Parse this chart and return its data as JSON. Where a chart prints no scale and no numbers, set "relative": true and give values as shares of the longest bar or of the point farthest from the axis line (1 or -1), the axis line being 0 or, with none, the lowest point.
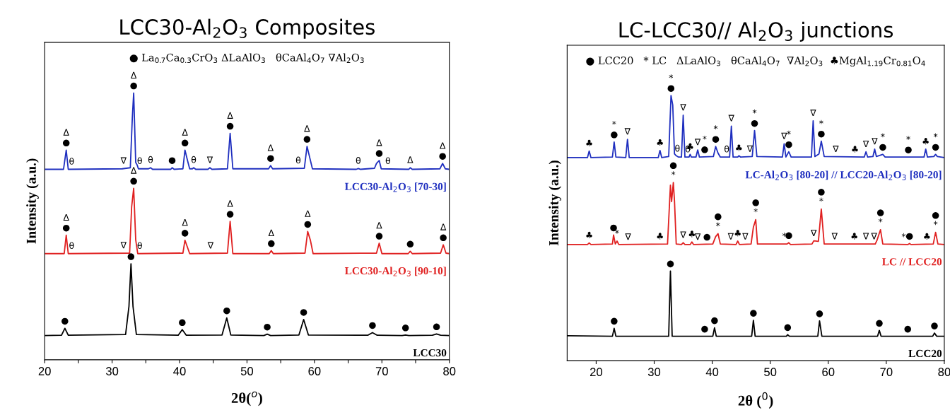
{
  "chart_data": [
    {
      "type": "line",
      "title": "LCC30-Al$_{2}$O$_{3}$ Composites",
      "xlabel": "2θ($^{o}$)",
      "ylabel": "Intensity (a.u.)",
      "relative": true,
      "tick_labels": "x",
      "xlim": [
        20,
        80
      ],
      "xticks": [
        20,
        {
          "value": 25,
          "label": null
        },
        30,
        {
          "value": 35,
          "label": null
        },
        40,
        {
          "value": 45,
          "label": null
        },
        50,
        {
          "value": 55,
          "label": null
        },
        60,
        {
          "value": 65,
          "label": null
        },
        70,
        {
          "value": 75,
          "label": null
        },
        80
      ],
      "series": [
        {
          "name": "LCC30-Al$_{2}$O$_{3}$ [70-30]",
          "color": "#1f2fbf",
          "x": [
            20,
            22.8,
            23.2,
            23.5,
            31.5,
            32.7,
            33.0,
            33.2,
            33.5,
            33.7,
            33.9,
            35.4,
            35.7,
            36.0,
            38.7,
            38.9,
            39.2,
            40.5,
            40.8,
            41.2,
            41.5,
            41.9,
            42.1,
            42.4,
            44.2,
            44.5,
            44.8,
            47.1,
            47.5,
            47.9,
            53.2,
            53.5,
            53.8,
            58.5,
            58.9,
            59.3,
            59.7,
            66.2,
            66.5,
            66.8,
            68.9,
            69.2,
            69.6,
            69.9,
            74.0,
            74.2,
            74.5,
            78.6,
            79.0,
            79.4,
            80
          ],
          "values": [
            0.714,
            0.714,
            0.786,
            0.714,
            0.716,
            0.72,
            0.909,
            1.0,
            0.74,
            0.731,
            0.716,
            0.716,
            0.72,
            0.714,
            0.714,
            0.72,
            0.714,
            0.716,
            0.786,
            0.745,
            0.716,
            0.716,
            0.72,
            0.714,
            0.714,
            0.72,
            0.714,
            0.716,
            0.849,
            0.716,
            0.716,
            0.728,
            0.716,
            0.718,
            0.8,
            0.758,
            0.716,
            0.714,
            0.717,
            0.714,
            0.718,
            0.736,
            0.747,
            0.716,
            0.714,
            0.72,
            0.714,
            0.716,
            0.736,
            0.716,
            0.714
          ]
        },
        {
          "name": "LCC30-Al$_{2}$O$_{3}$ [90-10]",
          "color": "#e02020",
          "x": [
            20,
            22.9,
            23.2,
            23.5,
            32.6,
            32.9,
            33.2,
            33.5,
            33.8,
            40.5,
            40.8,
            41.2,
            41.5,
            47.1,
            47.5,
            47.9,
            53.3,
            53.6,
            53.9,
            58.6,
            59.0,
            59.4,
            59.8,
            69.2,
            69.6,
            70.0,
            73.9,
            74.2,
            74.5,
            78.7,
            79.1,
            79.5,
            80
          ],
          "values": [
            0.398,
            0.398,
            0.467,
            0.398,
            0.4,
            0.574,
            0.643,
            0.45,
            0.398,
            0.4,
            0.448,
            0.42,
            0.398,
            0.4,
            0.519,
            0.398,
            0.398,
            0.409,
            0.398,
            0.4,
            0.481,
            0.448,
            0.398,
            0.4,
            0.437,
            0.398,
            0.398,
            0.407,
            0.398,
            0.4,
            0.431,
            0.4,
            0.398
          ]
        },
        {
          "name": "LCC30",
          "color": "#000000",
          "x": [
            20,
            22.5,
            23.0,
            23.5,
            32.0,
            32.5,
            32.8,
            33.1,
            33.6,
            39.8,
            40.4,
            41.0,
            46.3,
            47.0,
            47.6,
            52.5,
            53.0,
            53.5,
            57.7,
            58.4,
            59.1,
            67.9,
            68.6,
            69.3,
            73.0,
            73.5,
            74.0,
            77.5,
            78.1,
            78.7,
            80
          ],
          "values": [
            0.091,
            0.092,
            0.118,
            0.092,
            0.095,
            0.2,
            0.36,
            0.2,
            0.095,
            0.092,
            0.113,
            0.092,
            0.093,
            0.157,
            0.093,
            0.091,
            0.096,
            0.091,
            0.093,
            0.151,
            0.093,
            0.092,
            0.102,
            0.092,
            0.091,
            0.093,
            0.091,
            0.092,
            0.097,
            0.092,
            0.091
          ]
        }
      ],
      "annotations": [
        "● La$_{0.7}$Ca$_{0.3}$CrO$_{3}$ ΔLaAlO$_{3}$   θCaAl$_{4}$O$_{7}$ ∇Al$_{2}$O$_{3}$",
        {
          "text": "●",
          "x": 23.2,
          "y": 0.786
        },
        {
          "text": "Δ",
          "x": 23.2,
          "y": 0.786
        },
        {
          "text": "θ",
          "x": 24.0,
          "y": 0.714
        },
        {
          "text": "∇",
          "x": 31.7,
          "y": 0.717
        },
        {
          "text": "●",
          "x": 33.2,
          "y": 1.0
        },
        {
          "text": "Δ",
          "x": 33.2,
          "y": 1.0
        },
        {
          "text": "θ",
          "x": 34.1,
          "y": 0.716
        },
        {
          "text": "θ",
          "x": 35.7,
          "y": 0.72
        },
        {
          "text": "●",
          "x": 38.9,
          "y": 0.72
        },
        {
          "text": "●",
          "x": 40.8,
          "y": 0.786
        },
        {
          "text": "Δ",
          "x": 40.8,
          "y": 0.786
        },
        {
          "text": "θ",
          "x": 42.1,
          "y": 0.72
        },
        {
          "text": "∇",
          "x": 44.5,
          "y": 0.72
        },
        {
          "text": "●",
          "x": 47.5,
          "y": 0.849
        },
        {
          "text": "Δ",
          "x": 47.5,
          "y": 0.849
        },
        {
          "text": "●",
          "x": 53.5,
          "y": 0.728
        },
        {
          "text": "Δ",
          "x": 53.5,
          "y": 0.728
        },
        {
          "text": "θ",
          "x": 57.6,
          "y": 0.718
        },
        {
          "text": "●",
          "x": 58.9,
          "y": 0.8
        },
        {
          "text": "Δ",
          "x": 58.9,
          "y": 0.8
        },
        {
          "text": "θ",
          "x": 66.5,
          "y": 0.717
        },
        {
          "text": "●",
          "x": 69.6,
          "y": 0.747
        },
        {
          "text": "Δ",
          "x": 69.6,
          "y": 0.747
        },
        {
          "text": "θ",
          "x": 70.9,
          "y": 0.716
        },
        {
          "text": "Δ",
          "x": 74.2,
          "y": 0.72
        },
        {
          "text": "●",
          "x": 79.0,
          "y": 0.736
        },
        {
          "text": "Δ",
          "x": 79.0,
          "y": 0.736
        },
        {
          "text": "●",
          "x": 23.2,
          "y": 0.467
        },
        {
          "text": "Δ",
          "x": 23.2,
          "y": 0.467
        },
        {
          "text": "θ",
          "x": 24.0,
          "y": 0.398
        },
        {
          "text": "∇",
          "x": 31.7,
          "y": 0.4
        },
        {
          "text": "●",
          "x": 33.2,
          "y": 0.643
        },
        {
          "text": "Δ",
          "x": 33.2,
          "y": 0.643
        },
        {
          "text": "θ",
          "x": 34.1,
          "y": 0.398
        },
        {
          "text": "●",
          "x": 40.8,
          "y": 0.448
        },
        {
          "text": "Δ",
          "x": 40.8,
          "y": 0.448
        },
        {
          "text": "∇",
          "x": 44.6,
          "y": 0.399
        },
        {
          "text": "●",
          "x": 47.5,
          "y": 0.519
        },
        {
          "text": "Δ",
          "x": 47.5,
          "y": 0.519
        },
        {
          "text": "●",
          "x": 53.6,
          "y": 0.409
        },
        {
          "text": "Δ",
          "x": 53.6,
          "y": 0.409
        },
        {
          "text": "●",
          "x": 59.0,
          "y": 0.481
        },
        {
          "text": "Δ",
          "x": 59.0,
          "y": 0.481
        },
        {
          "text": "●",
          "x": 69.6,
          "y": 0.437
        },
        {
          "text": "Δ",
          "x": 69.6,
          "y": 0.437
        },
        {
          "text": "●",
          "x": 74.2,
          "y": 0.407
        },
        {
          "text": "●",
          "x": 79.1,
          "y": 0.431
        },
        {
          "text": "Δ",
          "x": 79.1,
          "y": 0.431
        },
        {
          "text": "●",
          "x": 23.0,
          "y": 0.118
        },
        {
          "text": "●",
          "x": 32.8,
          "y": 0.36
        },
        {
          "text": "●",
          "x": 40.4,
          "y": 0.113
        },
        {
          "text": "●",
          "x": 47.0,
          "y": 0.157
        },
        {
          "text": "●",
          "x": 53.0,
          "y": 0.096
        },
        {
          "text": "●",
          "x": 58.4,
          "y": 0.151
        },
        {
          "text": "●",
          "x": 68.6,
          "y": 0.102
        },
        {
          "text": "●",
          "x": 73.5,
          "y": 0.093
        },
        {
          "text": "●",
          "x": 78.1,
          "y": 0.097
        }
      ]
    },
    {
      "type": "line",
      "title": "LC-LCC30// Al$_{2}$O$_{3}$ junctions",
      "xlabel": "2θ ($^{0}$)",
      "ylabel": "Intensity (a.u.)",
      "relative": true,
      "tick_labels": "x",
      "xlim": [
        15,
        80
      ],
      "xticks": [
        20,
        30,
        40,
        50,
        60,
        70,
        80
      ],
      "series": [
        {
          "name": "LC-Al$_{2}$O$_{3}$ [80-20] // LCC20-Al$_{2}$O$_{3}$ [80-20]",
          "color": "#1f2fbf",
          "x": [
            15,
            18.5,
            18.8,
            19.1,
            22.8,
            23.1,
            23.4,
            25.1,
            25.4,
            25.7,
            30.7,
            31.0,
            31.3,
            32.5,
            32.9,
            33.2,
            33.5,
            33.8,
            34.2,
            34.7,
            35.0,
            35.3,
            36.0,
            36.2,
            36.4,
            37.2,
            37.5,
            37.8,
            40.2,
            40.6,
            41.0,
            41.4,
            43.0,
            43.3,
            43.6,
            44.4,
            44.6,
            44.9,
            46.9,
            47.3,
            47.7,
            52.1,
            52.4,
            52.7,
            53.2,
            53.6,
            57.1,
            57.4,
            57.7,
            58.4,
            58.8,
            59.3,
            66.2,
            66.5,
            66.8,
            67.7,
            68.0,
            68.3,
            69.4,
            69.8,
            76.5,
            76.8,
            77.1,
            78.2,
            78.5,
            78.8,
            80
          ],
          "values": [
            0.766,
            0.766,
            0.791,
            0.766,
            0.768,
            0.825,
            0.768,
            0.766,
            0.835,
            0.766,
            0.766,
            0.793,
            0.766,
            0.77,
            1.0,
            0.964,
            0.78,
            0.773,
            0.768,
            0.768,
            0.926,
            0.768,
            0.768,
            0.778,
            0.768,
            0.768,
            0.795,
            0.768,
            0.77,
            0.808,
            0.783,
            0.768,
            0.768,
            0.885,
            0.768,
            0.768,
            0.773,
            0.768,
            0.77,
            0.868,
            0.77,
            0.768,
            0.818,
            0.768,
            0.788,
            0.768,
            0.768,
            0.905,
            0.77,
            0.78,
            0.828,
            0.77,
            0.768,
            0.788,
            0.768,
            0.77,
            0.798,
            0.77,
            0.778,
            0.768,
            0.768,
            0.798,
            0.768,
            0.77,
            0.778,
            0.77,
            0.766
          ]
        },
        {
          "name": "LC // LCC20",
          "color": "#e02020",
          "x": [
            15,
            18.5,
            18.8,
            19.1,
            22.8,
            23.0,
            23.3,
            23.6,
            23.9,
            32.3,
            32.8,
            33.0,
            33.3,
            33.5,
            33.8,
            34.7,
            35.0,
            35.3,
            36.2,
            36.5,
            36.8,
            40.1,
            40.6,
            41.0,
            41.4,
            44.1,
            44.4,
            44.7,
            46.7,
            47.1,
            47.5,
            47.8,
            52.9,
            53.2,
            53.5,
            57.2,
            57.5,
            58.3,
            58.8,
            59.3,
            68.1,
            68.4,
            69.0,
            69.4,
            73.7,
            74.0,
            74.3,
            78.1,
            78.5,
            78.9,
            80
          ],
          "values": [
            0.438,
            0.438,
            0.444,
            0.438,
            0.44,
            0.474,
            0.44,
            0.451,
            0.438,
            0.44,
            0.662,
            0.6,
            0.672,
            0.602,
            0.44,
            0.438,
            0.445,
            0.438,
            0.438,
            0.448,
            0.438,
            0.44,
            0.468,
            0.479,
            0.44,
            0.438,
            0.451,
            0.438,
            0.44,
            0.504,
            0.532,
            0.44,
            0.44,
            0.445,
            0.438,
            0.44,
            0.452,
            0.45,
            0.572,
            0.44,
            0.44,
            0.454,
            0.494,
            0.44,
            0.438,
            0.442,
            0.438,
            0.44,
            0.484,
            0.44,
            0.438
          ]
        },
        {
          "name": "LCC20",
          "color": "#000000",
          "x": [
            15,
            22.8,
            23.1,
            23.4,
            32.5,
            32.8,
            33.1,
            40.1,
            40.4,
            40.7,
            46.8,
            47.1,
            47.4,
            52.8,
            53.0,
            53.3,
            58.2,
            58.5,
            58.9,
            68.5,
            68.8,
            69.1,
            78.0,
            78.3,
            78.7,
            80
          ],
          "values": [
            0.094,
            0.092,
            0.122,
            0.092,
            0.092,
            0.338,
            0.092,
            0.092,
            0.124,
            0.092,
            0.092,
            0.152,
            0.092,
            0.092,
            0.098,
            0.092,
            0.092,
            0.15,
            0.092,
            0.092,
            0.114,
            0.092,
            0.092,
            0.104,
            0.092,
            0.092
          ]
        }
      ],
      "annotations": [
        "● LCC20   * LC   ΔLaAlO$_{3}$   θCaAl$_{4}$O$_{7}$  ∇Al$_{2}$O$_{3}$  ♣MgAl$_{1.19}$Cr$_{0.81}$O$_{4}$",
        {
          "text": "♣",
          "x": 18.8,
          "y": 0.791
        },
        {
          "text": "●",
          "x": 23.1,
          "y": 0.825
        },
        {
          "text": "*",
          "x": 23.1,
          "y": 0.825
        },
        {
          "text": "∇",
          "x": 25.4,
          "y": 0.835
        },
        {
          "text": "♣",
          "x": 31.0,
          "y": 0.793
        },
        {
          "text": "●",
          "x": 32.9,
          "y": 1.0
        },
        {
          "text": "*",
          "x": 32.9,
          "y": 1.0
        },
        {
          "text": "θ",
          "x": 34.0,
          "y": 0.771
        },
        {
          "text": "∇",
          "x": 35.0,
          "y": 0.926
        },
        {
          "text": "θ",
          "x": 35.8,
          "y": 0.768
        },
        {
          "text": "♣",
          "x": 36.2,
          "y": 0.778
        },
        {
          "text": "∇",
          "x": 37.5,
          "y": 0.795
        },
        {
          "text": "●",
          "x": 38.7,
          "y": 0.769
        },
        {
          "text": "*",
          "x": 38.7,
          "y": 0.769
        },
        {
          "text": "●",
          "x": 40.6,
          "y": 0.808
        },
        {
          "text": "*",
          "x": 40.6,
          "y": 0.808
        },
        {
          "text": "θ",
          "x": 42.5,
          "y": 0.768
        },
        {
          "text": "∇",
          "x": 43.3,
          "y": 0.885
        },
        {
          "text": "♣",
          "x": 44.6,
          "y": 0.773
        },
        {
          "text": "∇",
          "x": 46.5,
          "y": 0.77
        },
        {
          "text": "●",
          "x": 47.3,
          "y": 0.868
        },
        {
          "text": "*",
          "x": 47.3,
          "y": 0.868
        },
        {
          "text": "∇",
          "x": 52.4,
          "y": 0.818
        },
        {
          "text": "●",
          "x": 53.2,
          "y": 0.788
        },
        {
          "text": "*",
          "x": 53.2,
          "y": 0.788
        },
        {
          "text": "∇",
          "x": 57.4,
          "y": 0.905
        },
        {
          "text": "●",
          "x": 58.8,
          "y": 0.828
        },
        {
          "text": "*",
          "x": 58.8,
          "y": 0.828
        },
        {
          "text": "∇",
          "x": 61.3,
          "y": 0.769
        },
        {
          "text": "♣",
          "x": 64.6,
          "y": 0.768
        },
        {
          "text": "∇",
          "x": 66.5,
          "y": 0.788
        },
        {
          "text": "∇",
          "x": 68.0,
          "y": 0.798
        },
        {
          "text": "●",
          "x": 69.4,
          "y": 0.778
        },
        {
          "text": "*",
          "x": 69.4,
          "y": 0.778
        },
        {
          "text": "●",
          "x": 73.8,
          "y": 0.768
        },
        {
          "text": "*",
          "x": 73.8,
          "y": 0.768
        },
        {
          "text": "♣",
          "x": 76.8,
          "y": 0.798
        },
        {
          "text": "●",
          "x": 78.5,
          "y": 0.778
        },
        {
          "text": "*",
          "x": 78.5,
          "y": 0.778
        },
        {
          "text": "♣",
          "x": 18.8,
          "y": 0.444
        },
        {
          "text": "●",
          "x": 23.0,
          "y": 0.474
        },
        {
          "text": "*",
          "x": 23.6,
          "y": 0.451
        },
        {
          "text": "∇",
          "x": 25.5,
          "y": 0.438
        },
        {
          "text": "♣",
          "x": 31.0,
          "y": 0.44
        },
        {
          "text": "*",
          "x": 33.3,
          "y": 0.672
        },
        {
          "text": "●",
          "x": 33.3,
          "y": 0.672
        },
        {
          "text": "∇",
          "x": 35.0,
          "y": 0.445
        },
        {
          "text": "♣",
          "x": 36.5,
          "y": 0.448
        },
        {
          "text": "∇",
          "x": 37.5,
          "y": 0.438
        },
        {
          "text": "●",
          "x": 39.1,
          "y": 0.439
        },
        {
          "text": "*",
          "x": 41.0,
          "y": 0.479
        },
        {
          "text": "●",
          "x": 41.0,
          "y": 0.479
        },
        {
          "text": "∇",
          "x": 43.2,
          "y": 0.439
        },
        {
          "text": "♣",
          "x": 44.4,
          "y": 0.451
        },
        {
          "text": "∇",
          "x": 45.7,
          "y": 0.439
        },
        {
          "text": "*",
          "x": 47.5,
          "y": 0.532
        },
        {
          "text": "●",
          "x": 47.5,
          "y": 0.532
        },
        {
          "text": "*",
          "x": 52.4,
          "y": 0.44
        },
        {
          "text": "●",
          "x": 53.2,
          "y": 0.445
        },
        {
          "text": "∇",
          "x": 57.5,
          "y": 0.452
        },
        {
          "text": "*",
          "x": 58.8,
          "y": 0.572
        },
        {
          "text": "●",
          "x": 58.8,
          "y": 0.572
        },
        {
          "text": "∇",
          "x": 61.1,
          "y": 0.44
        },
        {
          "text": "♣",
          "x": 64.5,
          "y": 0.44
        },
        {
          "text": "∇",
          "x": 66.5,
          "y": 0.44
        },
        {
          "text": "∇",
          "x": 67.9,
          "y": 0.44
        },
        {
          "text": "*",
          "x": 69.0,
          "y": 0.494
        },
        {
          "text": "●",
          "x": 69.0,
          "y": 0.494
        },
        {
          "text": "*",
          "x": 73.0,
          "y": 0.438
        },
        {
          "text": "●",
          "x": 74.0,
          "y": 0.442
        },
        {
          "text": "♣",
          "x": 77.0,
          "y": 0.439
        },
        {
          "text": "*",
          "x": 78.5,
          "y": 0.484
        },
        {
          "text": "●",
          "x": 78.5,
          "y": 0.484
        },
        {
          "text": "●",
          "x": 23.1,
          "y": 0.122
        },
        {
          "text": "●",
          "x": 32.8,
          "y": 0.338
        },
        {
          "text": "●",
          "x": 38.7,
          "y": 0.092
        },
        {
          "text": "●",
          "x": 40.4,
          "y": 0.124
        },
        {
          "text": "●",
          "x": 47.1,
          "y": 0.152
        },
        {
          "text": "●",
          "x": 53.0,
          "y": 0.098
        },
        {
          "text": "●",
          "x": 58.5,
          "y": 0.15
        },
        {
          "text": "●",
          "x": 68.8,
          "y": 0.114
        },
        {
          "text": "●",
          "x": 73.7,
          "y": 0.092
        },
        {
          "text": "●",
          "x": 78.3,
          "y": 0.104
        }
      ]
    }
  ]
}
